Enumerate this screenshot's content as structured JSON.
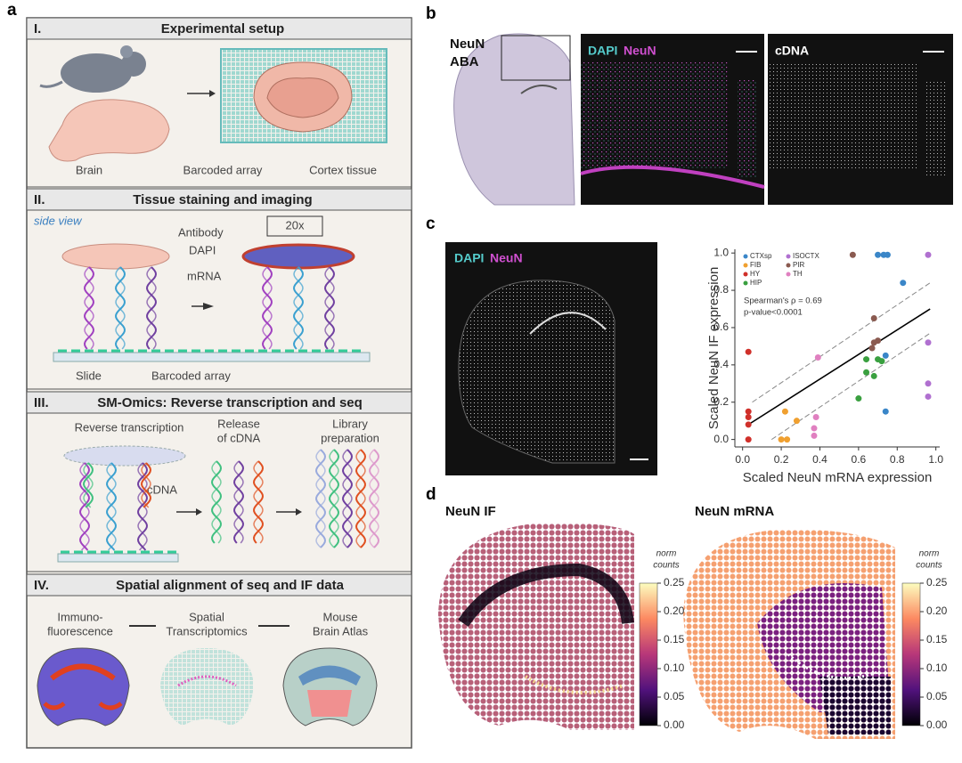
{
  "panel_labels": {
    "a": "a",
    "b": "b",
    "c": "c",
    "d": "d"
  },
  "panel_a": {
    "sections": [
      {
        "numeral": "I.",
        "title": "Experimental setup",
        "labels": [
          "Brain",
          "Barcoded array",
          "Cortex tissue"
        ]
      },
      {
        "numeral": "II.",
        "title": "Tissue staining and imaging",
        "labels": [
          "side view",
          "Antibody",
          "DAPI",
          "mRNA",
          "20x",
          "Slide",
          "Barcoded array"
        ]
      },
      {
        "numeral": "III.",
        "title": "SM-Omics: Reverse transcription and seq",
        "labels": [
          "Reverse transcription",
          "Release",
          "of cDNA",
          "Library",
          "preparation",
          "cDNA"
        ]
      },
      {
        "numeral": "IV.",
        "title": "Spatial alignment of seq and IF data",
        "labels": [
          "Immuno-",
          "fluorescence",
          "Spatial",
          "Transcriptomics",
          "Mouse",
          "Brain Atlas"
        ]
      }
    ]
  },
  "panel_b": {
    "labels": [
      "NeuN",
      "ABA",
      "DAPI",
      "NeuN",
      "cDNA"
    ]
  },
  "panel_c": {
    "labels": [
      "DAPI",
      "NeuN"
    ],
    "chart_data": {
      "type": "scatter",
      "xlabel": "Scaled NeuN mRNA expression",
      "ylabel": "Scaled NeuN IF expression",
      "xlim": [
        -0.04,
        1.02
      ],
      "ylim": [
        -0.04,
        1.02
      ],
      "xticks": [
        {
          "value": 0,
          "label": "0.0"
        },
        {
          "value": 0.2,
          "label": "0.2"
        },
        {
          "value": 0.4,
          "label": "0.4"
        },
        {
          "value": 0.6,
          "label": "0.6"
        },
        {
          "value": 0.8,
          "label": "0.8"
        },
        {
          "value": 1,
          "label": "1.0"
        }
      ],
      "yticks": [
        {
          "value": 0,
          "label": "0.0"
        },
        {
          "value": 0.2,
          "label": "0.2"
        },
        {
          "value": 0.4,
          "label": "0.4"
        },
        {
          "value": 0.6,
          "label": "0.6"
        },
        {
          "value": 0.8,
          "label": "0.8"
        },
        {
          "value": 1,
          "label": "1.0"
        }
      ],
      "grid": false,
      "legend": "upper-left",
      "annotations": [
        "Spearman's ρ = 0.69",
        "p-value<0.0001"
      ],
      "series": [
        {
          "name": "CTXsp",
          "color": "#3a86c8",
          "x": [
            0.7,
            0.73,
            0.75,
            0.83,
            0.74,
            0.74
          ],
          "values": [
            0.99,
            0.99,
            0.99,
            0.84,
            0.45,
            0.15
          ]
        },
        {
          "name": "FIB",
          "color": "#f0a030",
          "x": [
            0.2,
            0.23,
            0.22,
            0.28
          ],
          "values": [
            0.0,
            0.0,
            0.15,
            0.1
          ]
        },
        {
          "name": "HY",
          "color": "#d0302a",
          "x": [
            0.03,
            0.03,
            0.03,
            0.03,
            0.03
          ],
          "values": [
            0.47,
            0.15,
            0.12,
            0.08,
            0.0
          ]
        },
        {
          "name": "HIP",
          "color": "#3aa040",
          "x": [
            0.6,
            0.64,
            0.64,
            0.68,
            0.72,
            0.7
          ],
          "values": [
            0.22,
            0.43,
            0.36,
            0.34,
            0.42,
            0.43
          ]
        },
        {
          "name": "ISOCTX",
          "color": "#b070d0",
          "x": [
            0.96,
            0.96,
            0.96,
            0.96
          ],
          "values": [
            0.99,
            0.52,
            0.3,
            0.23
          ]
        },
        {
          "name": "PIR",
          "color": "#8a5a50",
          "x": [
            0.57,
            0.68,
            0.68,
            0.7,
            0.67
          ],
          "values": [
            0.99,
            0.65,
            0.52,
            0.53,
            0.49
          ]
        },
        {
          "name": "TH",
          "color": "#e080c0",
          "x": [
            0.37,
            0.37,
            0.38,
            0.39
          ],
          "values": [
            0.06,
            0.02,
            0.12,
            0.44
          ]
        }
      ],
      "lines": [
        {
          "style": "solid",
          "color": "#000000",
          "x": [
            0.03,
            0.97
          ],
          "y": [
            0.08,
            0.7
          ]
        },
        {
          "style": "dashed",
          "color": "#888888",
          "x": [
            0.05,
            0.97
          ],
          "y": [
            0.2,
            0.84
          ]
        },
        {
          "style": "dashed",
          "color": "#888888",
          "x": [
            0.15,
            0.97
          ],
          "y": [
            0.0,
            0.57
          ]
        }
      ]
    }
  },
  "panel_d": {
    "titles": [
      "NeuN IF",
      "NeuN mRNA"
    ],
    "colorbar": {
      "label": [
        "norm",
        "counts"
      ],
      "lim": [
        0,
        0.25
      ],
      "ticks": [
        {
          "value": 0,
          "label": "0.00"
        },
        {
          "value": 0.05,
          "label": "0.05"
        },
        {
          "value": 0.1,
          "label": "0.10"
        },
        {
          "value": 0.15,
          "label": "0.15"
        },
        {
          "value": 0.2,
          "label": "0.20"
        },
        {
          "value": 0.25,
          "label": "0.25"
        }
      ]
    }
  }
}
